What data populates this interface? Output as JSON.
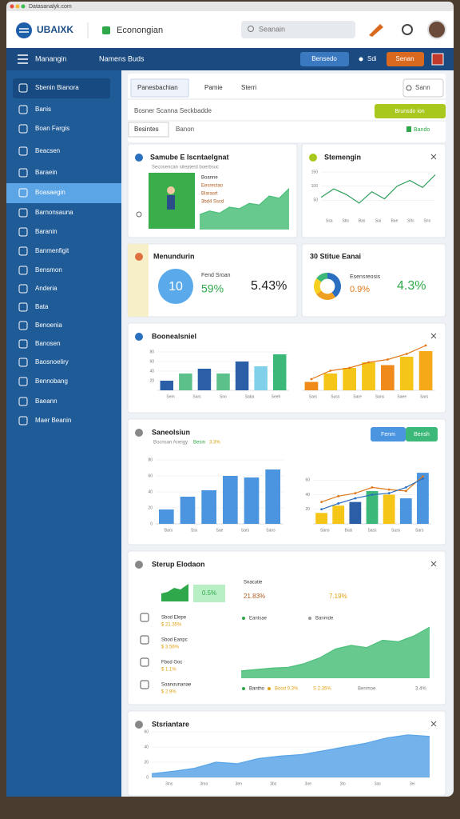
{
  "browser": {
    "url": "Datasanalyk.com"
  },
  "header": {
    "logo": "UBAIXK",
    "workspace": "Econongian",
    "search": "Seanain"
  },
  "navbar": {
    "title": "Manangin",
    "section": "Namens Buds",
    "buttons": [
      "Bensedo",
      "Sdi",
      "Senan"
    ]
  },
  "sidebar": {
    "items": [
      "Sbenin Bianora",
      "Banis",
      "Boan Fargis",
      "Beacsen",
      "Baraein",
      "Boasaegin",
      "Barnonsauna",
      "Baranin",
      "Banmenfigit",
      "Bensmon",
      "Anderia",
      "Bata",
      "Benoenia",
      "Banosen",
      "Baosnoeliry",
      "Bennobang",
      "Baeann",
      "Maer Beanin"
    ],
    "active": 5
  },
  "toolbar": {
    "tabs": [
      "Panesbachian",
      "Pamie",
      "Sterri"
    ],
    "search": "Sann",
    "breadcrumb": "Bosner Scanna Seckbadde",
    "action": "Brunsdo ion",
    "filters": [
      "Besintes",
      "Banon"
    ],
    "status": "Bando"
  },
  "cards": [
    {
      "title": "Samube E Iscntaelgnat",
      "subtitle": "Secosencan siteaterd boerbsuc",
      "details": [
        "Boanne",
        "Eesrectao",
        "Blarasrt",
        "3bd4 Sscd"
      ],
      "chart": {
        "type": "area",
        "values": [
          20,
          25,
          22,
          30,
          28,
          35,
          33,
          45,
          42,
          55
        ],
        "ylim": [
          0,
          60
        ],
        "color": "#4cc07a"
      }
    },
    {
      "title": "Stemengin",
      "chart": {
        "type": "line",
        "values": [
          60,
          90,
          70,
          40,
          80,
          55,
          100,
          120,
          95,
          140
        ],
        "ylim": [
          0,
          150
        ],
        "yticks": [
          50,
          100,
          150
        ],
        "x_labels": [
          "Ssa",
          "Sbs",
          "Bas",
          "Sai",
          "Bae",
          "S9s",
          "Sns"
        ],
        "color": "#2e9e5a"
      }
    },
    {
      "title": "Menundurin",
      "badge": "10",
      "label": "Fend Sroan",
      "change": "59%",
      "total": "5.43%"
    },
    {
      "title": "30 Stitue Eanai",
      "label": "Esensreosis",
      "change": "0.9%",
      "total": "4.3%",
      "chart": {
        "type": "pie",
        "values": [
          40,
          25,
          20,
          15
        ],
        "colors": [
          "#2a6fc0",
          "#f0a020",
          "#f5d020",
          "#3cb878"
        ]
      }
    },
    {
      "title": "Boonealsniel",
      "charts": [
        {
          "type": "bar",
          "values": [
            20,
            35,
            45,
            35,
            60,
            50,
            75
          ],
          "colors": [
            "#2a5fa8",
            "#5cc08a",
            "#2a5fa8",
            "#5cc08a",
            "#2a5fa8",
            "#7fd0e8",
            "#3cb878"
          ],
          "ylim": [
            0,
            80
          ],
          "yticks": [
            20,
            40,
            60,
            80
          ],
          "x_labels": [
            "Sem",
            "Sars",
            "Sno",
            "Saba",
            "Seeh"
          ]
        },
        {
          "type": "bar",
          "values": [
            15,
            30,
            40,
            50,
            45,
            60,
            70
          ],
          "colors": [
            "#f08a1a",
            "#f5c518",
            "#f5c518",
            "#f5c518",
            "#f08a1a",
            "#f5c518",
            "#f5a818"
          ],
          "ylim": [
            0,
            80
          ],
          "lines": [
            {
              "values": [
                20,
                35,
                40,
                50,
                55,
                65,
                80
              ],
              "color": "#e07818"
            }
          ],
          "x_labels": [
            "Sars",
            "Suss",
            "Sare",
            "Sans",
            "Saee",
            "Sars"
          ]
        }
      ]
    },
    {
      "title": "Saneolsiun",
      "subtitle": "Bocnsan Aneigy",
      "highlight": "Besin",
      "change": "3.3%",
      "buttons": [
        "Fenm",
        "Bensh"
      ],
      "charts": [
        {
          "type": "bar",
          "values": [
            18,
            34,
            42,
            60,
            58,
            68
          ],
          "colors": [
            "#4a94e0",
            "#4a94e0",
            "#4a94e0",
            "#4a94e0",
            "#4a94e0",
            "#4a94e0"
          ],
          "ylim": [
            0,
            80
          ],
          "yticks": [
            0,
            20,
            40,
            60,
            80
          ],
          "x_labels": [
            "Bars",
            "Sss",
            "Sae",
            "Sars",
            "Sans"
          ]
        },
        {
          "type": "bar",
          "values": [
            15,
            25,
            30,
            45,
            40,
            35,
            70
          ],
          "colors": [
            "#f5c518",
            "#f5c518",
            "#2a5fa8",
            "#3cb878",
            "#f5c518",
            "#4a94e0",
            "#4a94e0"
          ],
          "ylim": [
            0,
            80
          ],
          "yticks": [
            20,
            40,
            60
          ],
          "lines": [
            {
              "values": [
                30,
                38,
                42,
                50,
                47,
                45,
                65
              ],
              "color": "#e07818"
            },
            {
              "values": [
                20,
                28,
                35,
                40,
                42,
                50,
                62
              ],
              "color": "#2a6fc0"
            }
          ],
          "x_labels": [
            "Sans",
            "Bais",
            "Sass",
            "Suss",
            "Sars"
          ]
        }
      ]
    },
    {
      "title": "Sterup Elodaon",
      "badge": "0.5%",
      "stat_label": "Snacutie",
      "stat_values": [
        "21.83%",
        "7.19%"
      ],
      "list": [
        {
          "label": "Sbod Elepe",
          "value": "$ 21.35%"
        },
        {
          "label": "Sbod Eanpc",
          "value": "$ 3.56%"
        },
        {
          "label": "Fbod Goc",
          "value": "$ 1.1%"
        },
        {
          "label": "Soanounanae",
          "value": "$ 2.9%"
        }
      ],
      "legend": [
        "Eantsae",
        "Banmde"
      ],
      "footer": [
        "Bantho",
        "Bood 0.3%",
        "S 2.35%",
        "Benmoe",
        "3.4%"
      ],
      "chart": {
        "type": "area",
        "values": [
          10,
          12,
          14,
          15,
          20,
          28,
          40,
          45,
          42,
          52,
          50,
          58,
          70
        ],
        "ylim": [
          0,
          80
        ],
        "color": "#4cc07a"
      }
    },
    {
      "title": "Stsriantare",
      "chart": {
        "type": "area",
        "values": [
          5,
          8,
          12,
          20,
          18,
          25,
          28,
          30,
          35,
          40,
          45,
          52,
          56,
          54
        ],
        "ylim": [
          0,
          60
        ],
        "yticks": [
          0,
          20,
          40,
          60
        ],
        "x_labels": [
          "3ins",
          "3ma",
          "3en",
          "3bs",
          "3ne",
          "3to",
          "3as",
          "3ei"
        ],
        "color": "#5aa5e8"
      }
    }
  ]
}
